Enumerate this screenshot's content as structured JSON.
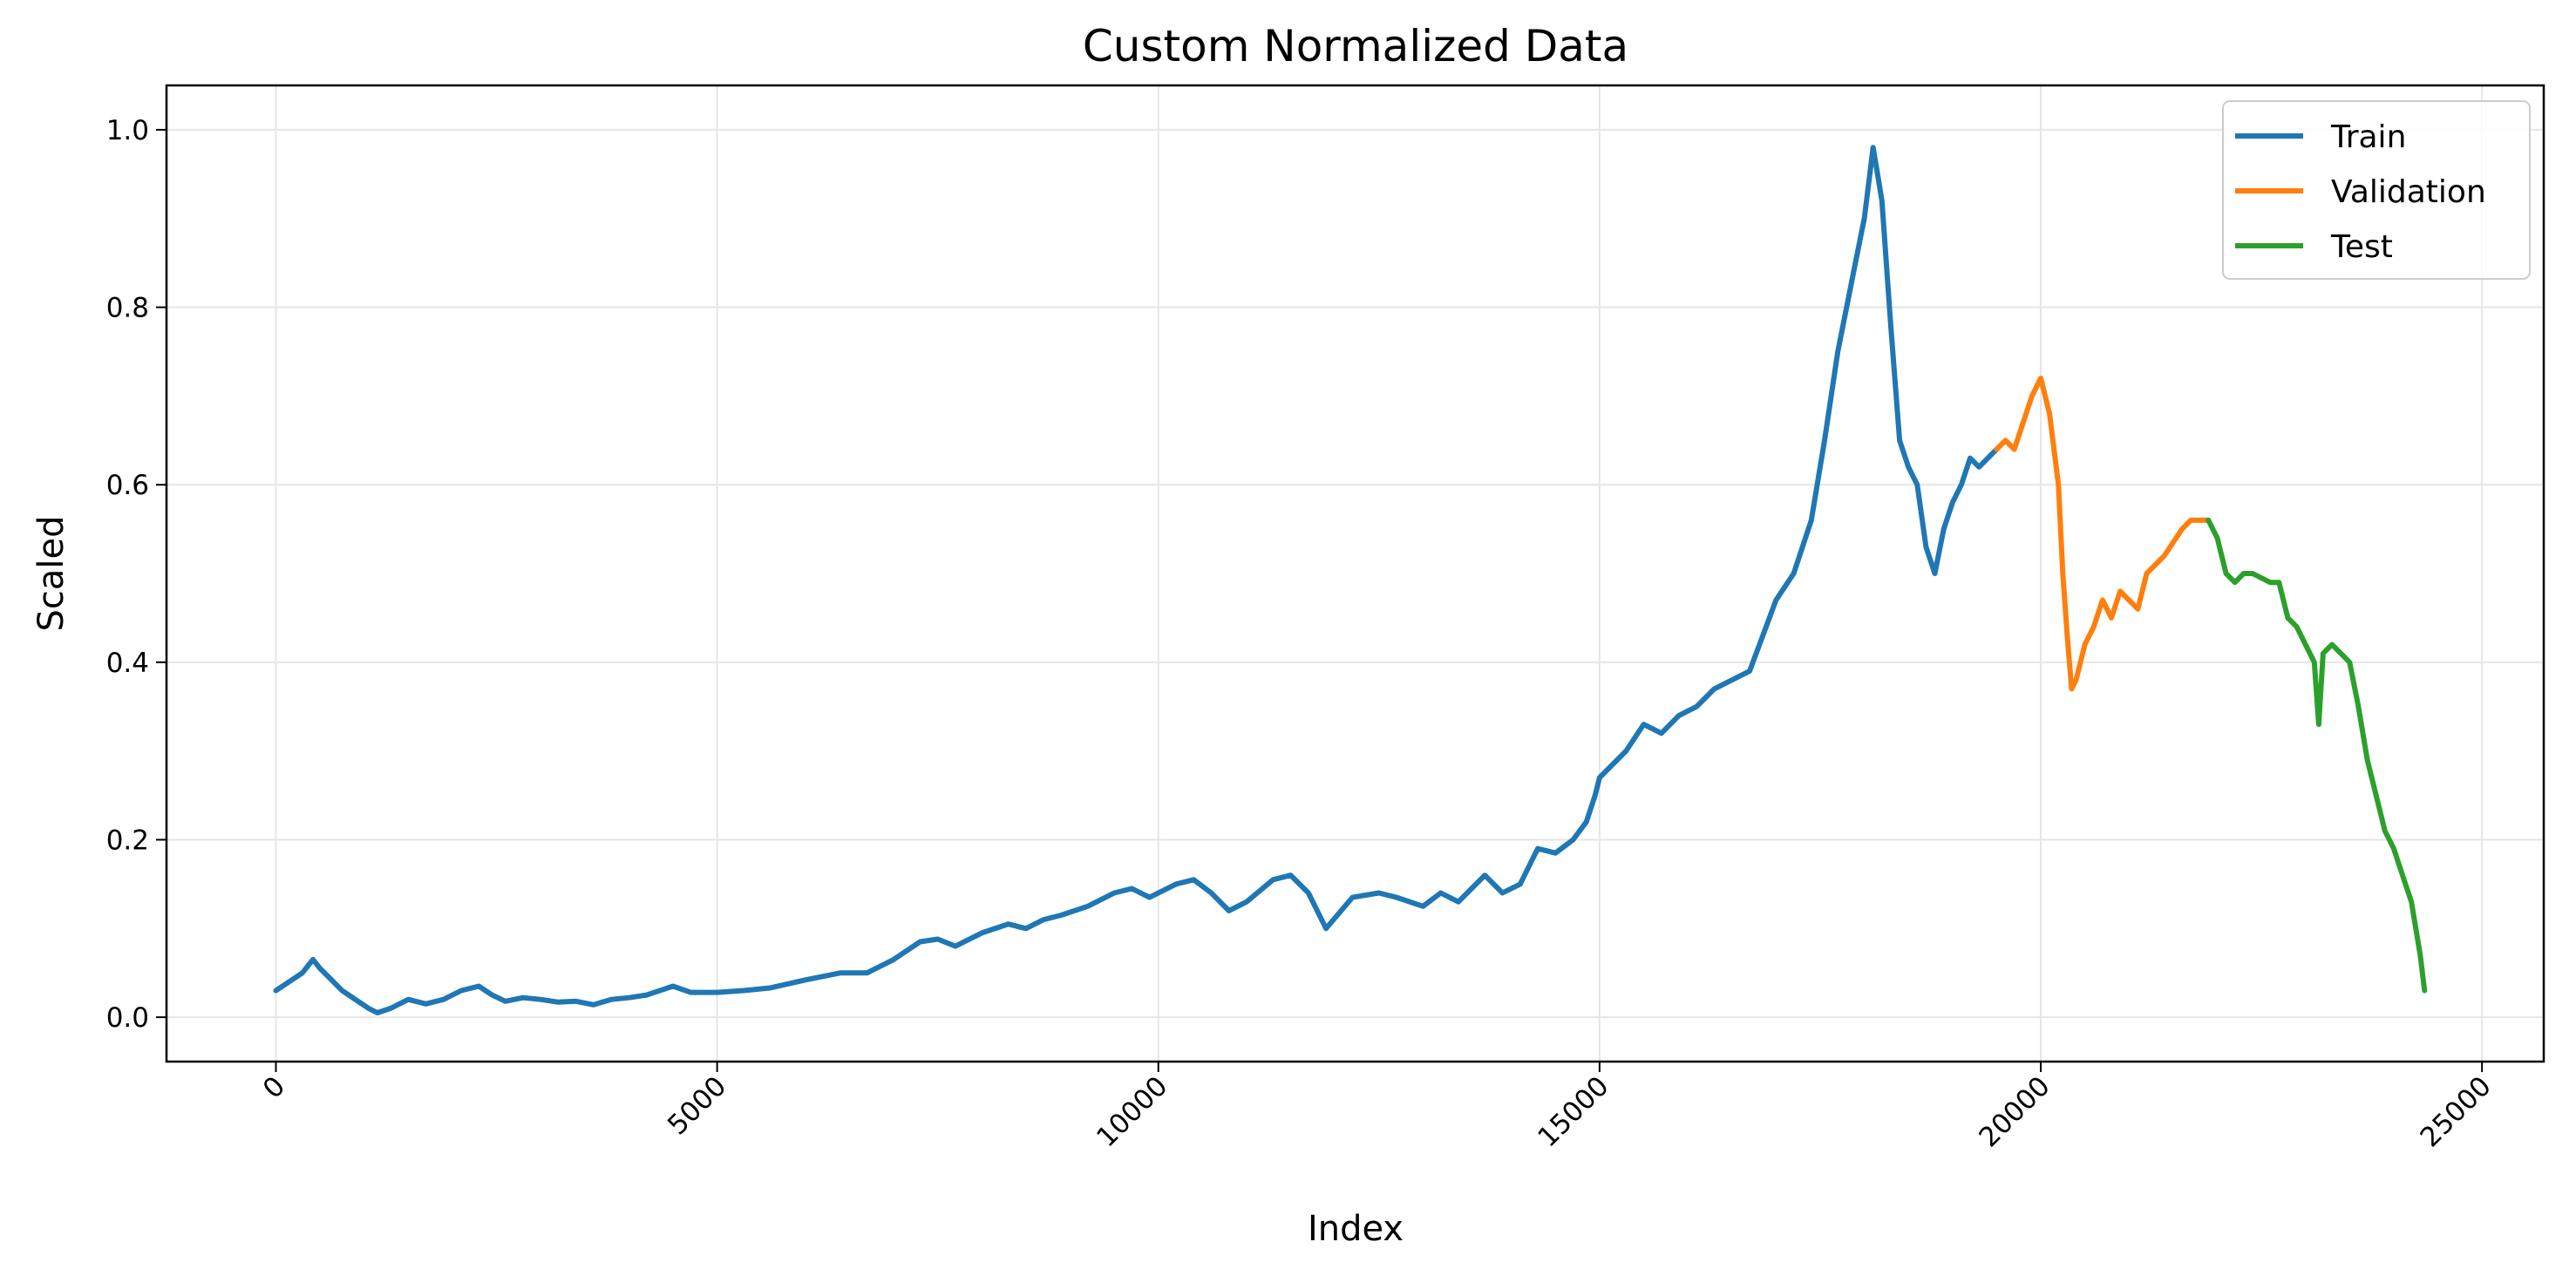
{
  "chart_data": {
    "type": "line",
    "title": "Custom Normalized Data",
    "xlabel": "Index",
    "ylabel": "Scaled",
    "xlim": [
      -1240,
      25700
    ],
    "ylim": [
      -0.05,
      1.05
    ],
    "xticks": [
      0,
      5000,
      10000,
      15000,
      20000,
      25000
    ],
    "yticks": [
      0.0,
      0.2,
      0.4,
      0.6,
      0.8,
      1.0
    ],
    "xtick_labels": [
      "0",
      "5000",
      "10000",
      "15000",
      "20000",
      "25000"
    ],
    "ytick_labels": [
      "0.0",
      "0.2",
      "0.4",
      "0.6",
      "0.8",
      "1.0"
    ],
    "grid": true,
    "legend_position": "top-right",
    "series": [
      {
        "name": "Train",
        "color": "#1f77b4",
        "x": [
          0,
          150,
          300,
          420,
          500,
          600,
          750,
          900,
          1050,
          1150,
          1300,
          1500,
          1700,
          1900,
          2100,
          2300,
          2450,
          2600,
          2800,
          3000,
          3200,
          3400,
          3600,
          3800,
          4000,
          4200,
          4500,
          4700,
          5000,
          5300,
          5600,
          6000,
          6400,
          6700,
          7000,
          7300,
          7500,
          7700,
          8000,
          8300,
          8500,
          8700,
          8900,
          9200,
          9500,
          9700,
          9900,
          10200,
          10400,
          10600,
          10800,
          11000,
          11300,
          11500,
          11700,
          11900,
          12200,
          12500,
          12700,
          13000,
          13200,
          13400,
          13700,
          13900,
          14100,
          14300,
          14500,
          14700,
          14850,
          14950,
          15000,
          15100,
          15300,
          15500,
          15700,
          15900,
          16100,
          16300,
          16500,
          16700,
          16850,
          17000,
          17200,
          17400,
          17550,
          17700,
          17800,
          17900,
          18000,
          18100,
          18150,
          18200,
          18300,
          18400,
          18500,
          18600,
          18700,
          18800,
          18900,
          19000,
          19100,
          19200,
          19300,
          19400,
          19500
        ],
        "values": [
          0.03,
          0.04,
          0.05,
          0.065,
          0.055,
          0.045,
          0.03,
          0.02,
          0.01,
          0.005,
          0.01,
          0.02,
          0.015,
          0.02,
          0.03,
          0.035,
          0.025,
          0.018,
          0.022,
          0.02,
          0.017,
          0.018,
          0.014,
          0.02,
          0.022,
          0.025,
          0.035,
          0.028,
          0.028,
          0.03,
          0.033,
          0.042,
          0.05,
          0.05,
          0.065,
          0.085,
          0.088,
          0.08,
          0.095,
          0.105,
          0.1,
          0.11,
          0.115,
          0.125,
          0.14,
          0.145,
          0.135,
          0.15,
          0.155,
          0.14,
          0.12,
          0.13,
          0.155,
          0.16,
          0.14,
          0.1,
          0.135,
          0.14,
          0.135,
          0.125,
          0.14,
          0.13,
          0.16,
          0.14,
          0.15,
          0.19,
          0.185,
          0.2,
          0.22,
          0.25,
          0.27,
          0.28,
          0.3,
          0.33,
          0.32,
          0.34,
          0.35,
          0.37,
          0.38,
          0.39,
          0.43,
          0.47,
          0.5,
          0.56,
          0.65,
          0.75,
          0.8,
          0.85,
          0.9,
          0.98,
          0.95,
          0.92,
          0.78,
          0.65,
          0.62,
          0.6,
          0.53,
          0.5,
          0.55,
          0.58,
          0.6,
          0.63,
          0.62,
          0.63,
          0.64
        ]
      },
      {
        "name": "Validation",
        "color": "#ff7f0e",
        "x": [
          19500,
          19600,
          19700,
          19800,
          19900,
          20000,
          20050,
          20100,
          20200,
          20250,
          20300,
          20350,
          20400,
          20500,
          20600,
          20700,
          20800,
          20900,
          21000,
          21100,
          21200,
          21400,
          21600,
          21700,
          21800,
          21900
        ],
        "values": [
          0.64,
          0.65,
          0.64,
          0.67,
          0.7,
          0.72,
          0.7,
          0.68,
          0.6,
          0.5,
          0.43,
          0.37,
          0.38,
          0.42,
          0.44,
          0.47,
          0.45,
          0.48,
          0.47,
          0.46,
          0.5,
          0.52,
          0.55,
          0.56,
          0.56,
          0.56
        ]
      },
      {
        "name": "Test",
        "color": "#2ca02c",
        "x": [
          21900,
          22000,
          22100,
          22200,
          22300,
          22400,
          22600,
          22700,
          22800,
          22900,
          23000,
          23100,
          23150,
          23200,
          23300,
          23400,
          23500,
          23600,
          23700,
          23800,
          23900,
          24000,
          24100,
          24200,
          24300,
          24350
        ],
        "values": [
          0.56,
          0.54,
          0.5,
          0.49,
          0.5,
          0.5,
          0.49,
          0.49,
          0.45,
          0.44,
          0.42,
          0.4,
          0.33,
          0.41,
          0.42,
          0.41,
          0.4,
          0.35,
          0.29,
          0.25,
          0.21,
          0.19,
          0.16,
          0.13,
          0.07,
          0.03
        ]
      }
    ]
  }
}
